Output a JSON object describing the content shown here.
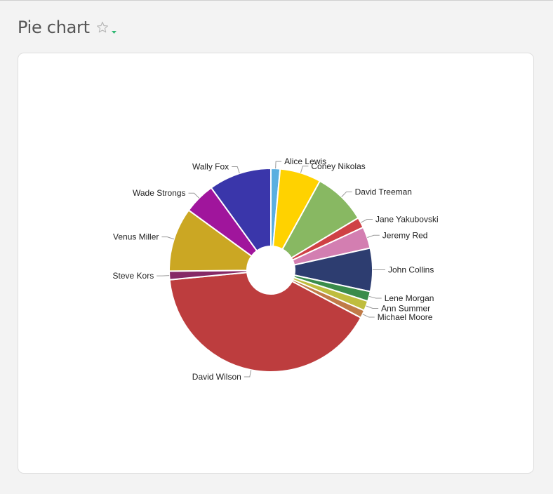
{
  "header": {
    "title": "Pie chart",
    "favorite_icon": "star-outline-icon",
    "menu_icon": "caret-down-icon",
    "accent_color": "#2eb872"
  },
  "chart_data": {
    "type": "pie",
    "donut": true,
    "legend": "none",
    "labels_outside": true,
    "start": "top",
    "direction": "clockwise",
    "slices": [
      {
        "label": "Alice Lewis",
        "value": 1.4,
        "color": "#5aafe0"
      },
      {
        "label": "Coney Nikolas",
        "value": 6.3,
        "color": "#ffd200"
      },
      {
        "label": "David Treeman",
        "value": 8.1,
        "color": "#88b862"
      },
      {
        "label": "Jane Yakubovski",
        "value": 1.6,
        "color": "#cf4145"
      },
      {
        "label": "Jeremy Red",
        "value": 3.3,
        "color": "#d37eb1"
      },
      {
        "label": "John Collins",
        "value": 6.6,
        "color": "#2d3d70"
      },
      {
        "label": "Lene Morgan",
        "value": 1.5,
        "color": "#3a8c4b"
      },
      {
        "label": "Ann Summer",
        "value": 1.5,
        "color": "#bfbd3e"
      },
      {
        "label": "Michael Moore",
        "value": 1.2,
        "color": "#c07b47"
      },
      {
        "label": "David Wilson",
        "value": 39.2,
        "color": "#bd3d3e"
      },
      {
        "label": "Steve Kors",
        "value": 1.3,
        "color": "#862a66"
      },
      {
        "label": "Venus Miller",
        "value": 9.8,
        "color": "#cba723"
      },
      {
        "label": "Wade Strongs",
        "value": 4.8,
        "color": "#a0159c"
      },
      {
        "label": "Wally Fox",
        "value": 9.6,
        "color": "#3a36aa"
      }
    ]
  }
}
